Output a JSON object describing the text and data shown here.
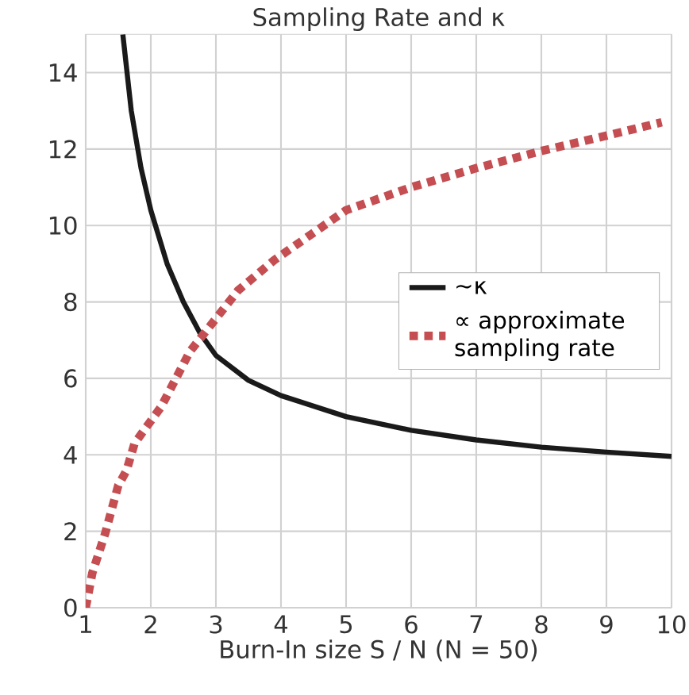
{
  "chart_data": {
    "type": "line",
    "title": "Sampling Rate and κ",
    "xlabel": "Burn-In size S / N  (N = 50)",
    "series": [
      {
        "name": "∼κ",
        "color": "#1a1a1a",
        "line_style": "solid",
        "x": [
          1.57,
          1.7,
          1.85,
          2,
          2.25,
          2.5,
          2.75,
          3,
          3.5,
          4,
          5,
          6,
          7,
          8,
          9,
          10
        ],
        "values": [
          15,
          13,
          11.5,
          10.4,
          9,
          8.0,
          7.2,
          6.6,
          5.95,
          5.55,
          5.0,
          4.64,
          4.39,
          4.2,
          4.07,
          3.96
        ]
      },
      {
        "name": "∝ approximate sampling rate",
        "color": "#c44e52",
        "line_style": "dotted",
        "x": [
          1,
          1.1,
          1.3,
          1.5,
          1.63,
          1.75,
          2.16,
          2.6,
          3.34,
          3.9,
          5,
          6,
          7,
          8,
          9,
          9.85
        ],
        "values": [
          0,
          0.9,
          1.95,
          3.2,
          3.6,
          4.3,
          5.26,
          6.7,
          8.3,
          9.1,
          10.4,
          11.0,
          11.5,
          11.95,
          12.35,
          12.7
        ]
      }
    ],
    "xlim": [
      1,
      10
    ],
    "ylim": [
      0,
      15
    ],
    "xticks": [
      1,
      2,
      3,
      4,
      5,
      6,
      7,
      8,
      9,
      10
    ],
    "yticks": [
      0,
      2,
      4,
      6,
      8,
      10,
      12,
      14
    ],
    "grid": true,
    "legend": "right"
  }
}
